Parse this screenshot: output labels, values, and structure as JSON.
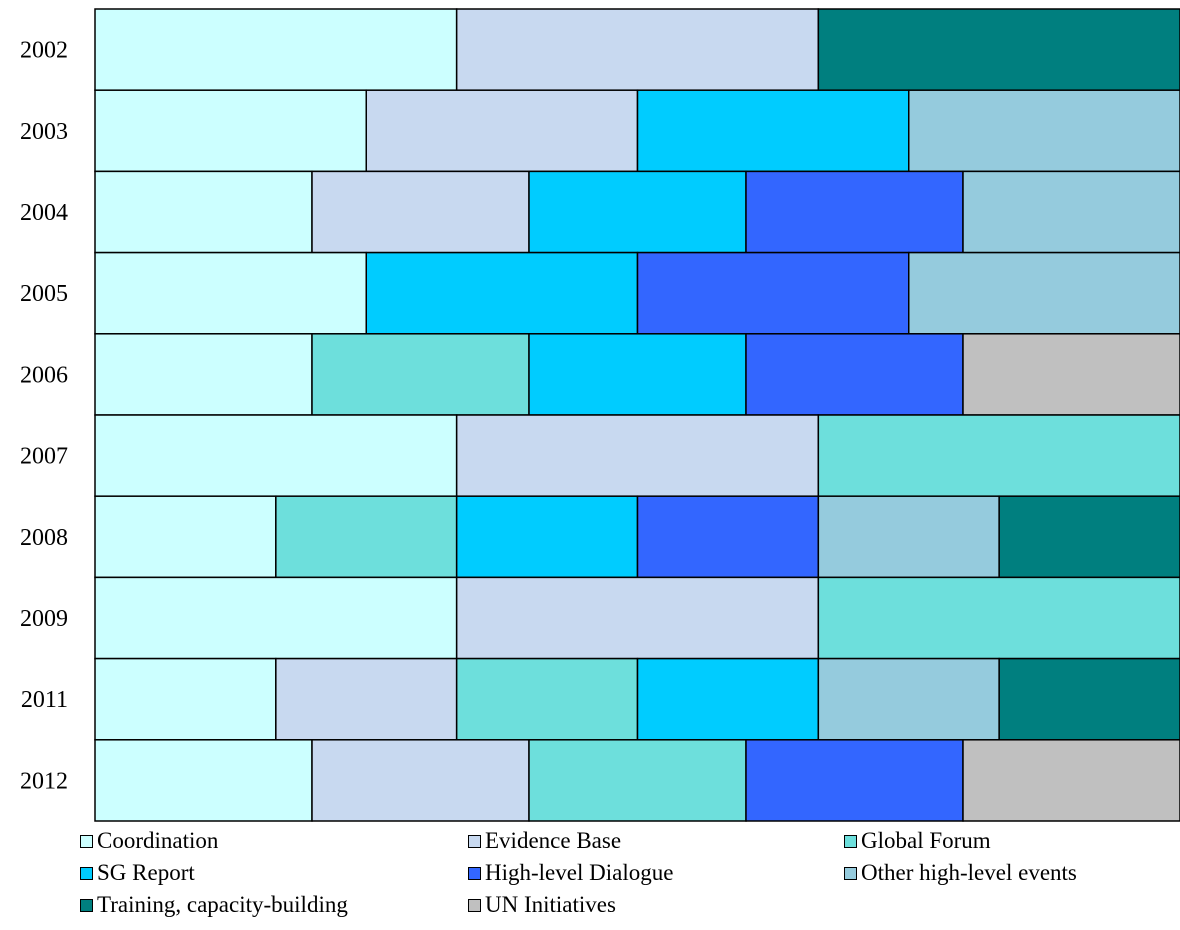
{
  "chart_data": {
    "type": "bar",
    "orientation": "horizontal",
    "stacked": "percent",
    "categories": [
      "2002",
      "2003",
      "2004",
      "2005",
      "2006",
      "2007",
      "2008",
      "2009",
      "2011",
      "2012"
    ],
    "series": [
      {
        "name": "Coordination",
        "color": "#ccffff",
        "values": [
          1,
          1,
          1,
          1,
          1,
          1,
          1,
          1,
          1,
          1
        ]
      },
      {
        "name": "Evidence Base",
        "color": "#c8d9f0",
        "values": [
          1,
          1,
          1,
          0,
          0,
          1,
          0,
          1,
          1,
          1
        ]
      },
      {
        "name": "Global Forum",
        "color": "#6ddfdc",
        "values": [
          0,
          0,
          0,
          0,
          1,
          1,
          1,
          1,
          1,
          1
        ]
      },
      {
        "name": "SG Report",
        "color": "#00ccff",
        "values": [
          0,
          1,
          1,
          1,
          1,
          0,
          1,
          0,
          1,
          0
        ]
      },
      {
        "name": "High-level Dialogue",
        "color": "#3366ff",
        "values": [
          0,
          0,
          1,
          1,
          1,
          0,
          1,
          0,
          0,
          1
        ]
      },
      {
        "name": "Other high-level events",
        "color": "#95cbdd",
        "values": [
          0,
          1,
          1,
          1,
          0,
          0,
          1,
          0,
          1,
          0
        ]
      },
      {
        "name": "Training, capacity-building",
        "color": "#007f7f",
        "values": [
          1,
          0,
          0,
          0,
          0,
          0,
          1,
          0,
          1,
          0
        ]
      },
      {
        "name": "UN Initiatives",
        "color": "#c0c0c0",
        "values": [
          0,
          0,
          0,
          0,
          1,
          0,
          0,
          0,
          0,
          1
        ]
      }
    ],
    "legend_position": "bottom",
    "grid": false
  }
}
